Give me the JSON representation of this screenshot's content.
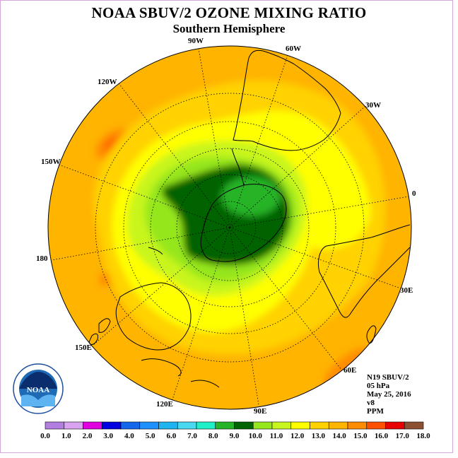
{
  "title": "NOAA SBUV/2 OZONE MIXING RATIO",
  "subtitle": "Southern Hemisphere",
  "longitude_labels": {
    "lon_90w": "90W",
    "lon_60w": "60W",
    "lon_120w": "120W",
    "lon_30w": "30W",
    "lon_150w": "150W",
    "lon_0": "0",
    "lon_180": "180",
    "lon_30e": "30E",
    "lon_150e": "150E",
    "lon_60e": "60E",
    "lon_120e": "120E",
    "lon_90e": "90E"
  },
  "info": {
    "satellite": "N19 SBUV/2",
    "level": "05 hPa",
    "date": "May 25, 2016",
    "version": "v8",
    "units": "PPM"
  },
  "logo": {
    "text": "NOAA"
  },
  "colorbar": {
    "colors": [
      "#b27fe0",
      "#d9a3f0",
      "#e000e0",
      "#0000e0",
      "#1466ea",
      "#1e90ff",
      "#1eb4f0",
      "#48d8f0",
      "#1ef0c8",
      "#28b428",
      "#006400",
      "#96e61e",
      "#c8f51e",
      "#ffff00",
      "#ffd200",
      "#ffb400",
      "#ff8c00",
      "#ff5000",
      "#e60000",
      "#8c5030"
    ],
    "labels": [
      "0.0",
      "1.0",
      "2.0",
      "3.0",
      "4.0",
      "5.0",
      "6.0",
      "7.0",
      "8.0",
      "9.0",
      "10.0",
      "11.0",
      "12.0",
      "13.0",
      "14.0",
      "15.0",
      "16.0",
      "17.0",
      "18.0"
    ]
  }
}
